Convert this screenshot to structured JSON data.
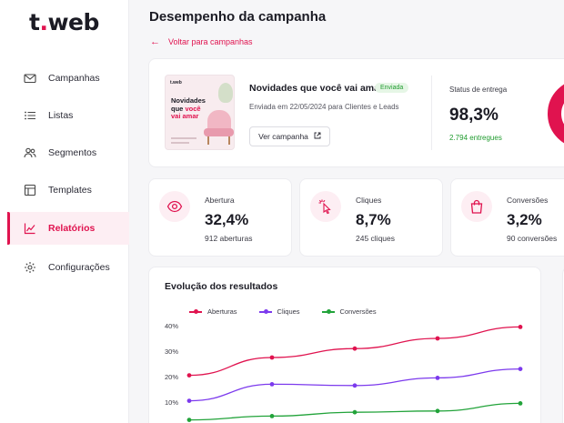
{
  "brand": {
    "logo_prefix": "t",
    "logo_dot": ".",
    "logo_suffix": "web",
    "accent": "#e0134f"
  },
  "sidebar": {
    "items": [
      {
        "label": "Campanhas",
        "icon": "mail-icon",
        "active": false
      },
      {
        "label": "Listas",
        "icon": "list-icon",
        "active": false
      },
      {
        "label": "Segmentos",
        "icon": "users-icon",
        "active": false
      },
      {
        "label": "Templates",
        "icon": "template-icon",
        "active": false
      },
      {
        "label": "Relatórios",
        "icon": "chart-icon",
        "active": true
      },
      {
        "label": "Configurações",
        "icon": "gear-icon",
        "active": false
      }
    ]
  },
  "header": {
    "title": "Desempenho da campanha",
    "back_label": "Voltar para campanhas"
  },
  "campaign": {
    "thumbnail": {
      "brand": "t.web",
      "title_line1": "Novidades",
      "title_line2": "que",
      "title_pink": "você",
      "title_line3": "vai amar"
    },
    "name": "Novidades que você vai amar",
    "badge": "Enviada",
    "sent_info": "Enviada em 22/05/2024 para Clientes e Leads",
    "view_button": "Ver campanha",
    "delivery": {
      "label": "Status de entrega",
      "value": "98,3%",
      "sub": "2.794 entregues"
    }
  },
  "stats": [
    {
      "label": "Abertura",
      "value": "32,4%",
      "sub": "912 aberturas",
      "icon": "eye-icon"
    },
    {
      "label": "Cliques",
      "value": "8,7%",
      "sub": "245 cliques",
      "icon": "cursor-click-icon"
    },
    {
      "label": "Conversões",
      "value": "3,2%",
      "sub": "90 conversões",
      "icon": "shopping-bag-icon"
    }
  ],
  "chart_card": {
    "title": "Evolução dos resultados"
  },
  "chart_data": {
    "type": "line",
    "title": "Evolução dos resultados",
    "y_ticks": [
      "40%",
      "30%",
      "20%",
      "10%"
    ],
    "ylim": [
      0,
      40
    ],
    "series": [
      {
        "name": "Aberturas",
        "color": "#e0134f",
        "values": [
          20.5,
          27.5,
          31,
          35,
          39.5
        ]
      },
      {
        "name": "Cliques",
        "color": "#7c3aed",
        "values": [
          10.5,
          17,
          16.5,
          19.5,
          23
        ]
      },
      {
        "name": "Conversões",
        "color": "#22a33a",
        "values": [
          3,
          4.5,
          6,
          6.5,
          9.5
        ]
      }
    ],
    "grid": false,
    "legend_position": "top-left"
  }
}
